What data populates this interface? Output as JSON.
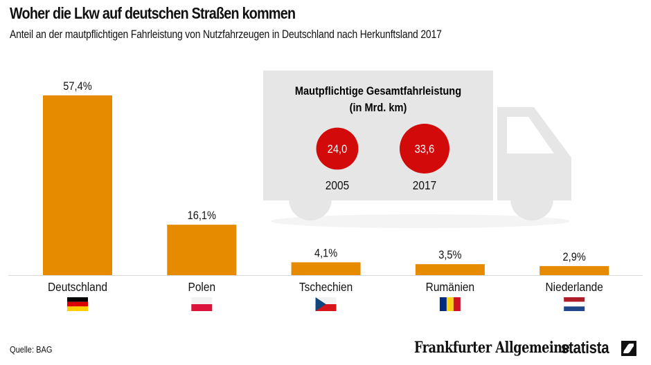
{
  "header": {
    "title": "Woher die Lkw auf deutschen Straßen kommen",
    "subtitle": "Anteil an der mautpflichtigen Fahrleistung von Nutzfahrzeugen in Deutschland nach Herkunftsland 2017"
  },
  "chart_data": {
    "type": "bar",
    "title": "Woher die Lkw auf deutschen Straßen kommen",
    "subtitle": "Anteil an der mautpflichtigen Fahrleistung von Nutzfahrzeugen in Deutschland nach Herkunftsland 2017",
    "xlabel": "",
    "ylabel": "",
    "ylim": [
      0,
      57.4
    ],
    "grid": false,
    "unit": "%",
    "categories": [
      "Deutschland",
      "Polen",
      "Tschechien",
      "Rumänien",
      "Niederlande"
    ],
    "values": [
      57.4,
      16.1,
      4.1,
      3.5,
      2.9
    ],
    "value_labels": [
      "57,4%",
      "16,1%",
      "4,1%",
      "3,5%",
      "2,9%"
    ],
    "flags": [
      "germany-flag",
      "poland-flag",
      "czech-flag",
      "romania-flag",
      "netherlands-flag"
    ],
    "bar_color": "#E68A00",
    "inset": {
      "type": "bubble",
      "title_line1": "Mautpflichtige Gesamtfahrleistung",
      "title_line2": "(in Mrd. km)",
      "unit": "Mrd. km",
      "points": [
        {
          "year": "2005",
          "value": 24.0,
          "label": "24,0"
        },
        {
          "year": "2017",
          "value": 33.6,
          "label": "33,6"
        }
      ],
      "bubble_color": "#D20A0A"
    }
  },
  "footer": {
    "source": "Quelle: BAG",
    "logo_faz": "Frankfurter Allgemeine",
    "logo_statista": "statista"
  },
  "colors": {
    "bar": "#E68A00",
    "bubble": "#D20A0A",
    "truck": "#E6E6E6",
    "shadow": "#F4F4F4",
    "baseline": "#D9D9D9"
  }
}
